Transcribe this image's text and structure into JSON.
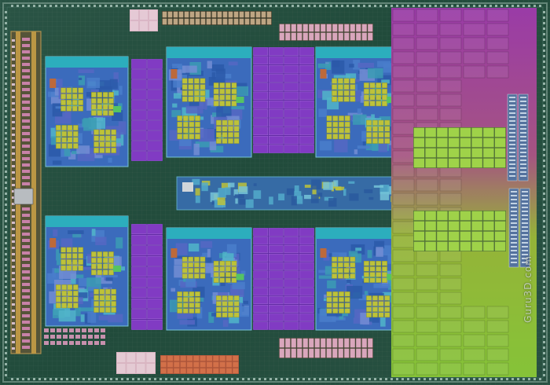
{
  "watermark": {
    "text": "Guru3D.com"
  },
  "colors": {
    "substrate": "#2a5646",
    "core_blue": "#3f72c8",
    "core_cyan": "#2fb9c9",
    "cache_yellow": "#c9cf3e",
    "cache_purple": "#8a3fd0",
    "l3_magenta": "#a43fb2",
    "l3_lime": "#8ed03c",
    "io_pink": "#e09bc0",
    "io_orange": "#c9703e"
  }
}
